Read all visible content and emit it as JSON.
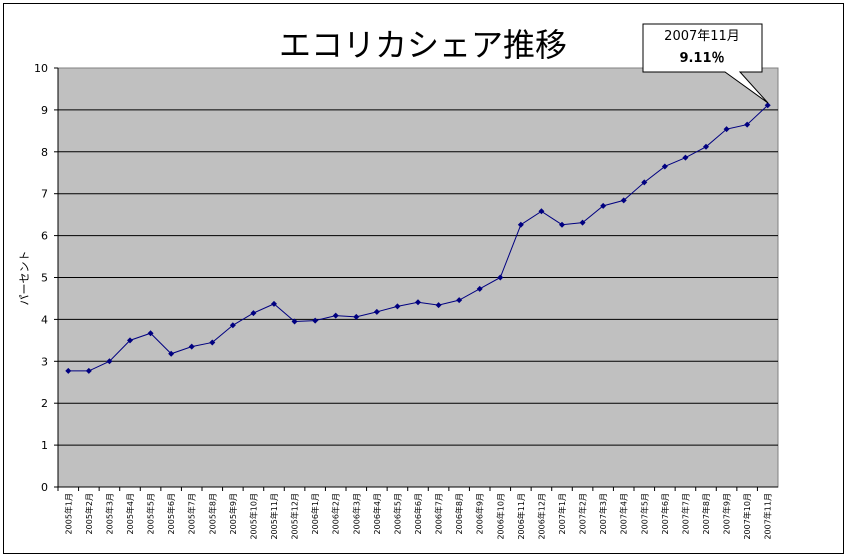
{
  "chart_data": {
    "type": "line",
    "title": "エコリカシェア推移",
    "ylabel": "パーセント",
    "xlabel": "",
    "ylim": [
      0,
      10
    ],
    "yticks": [
      "0",
      "1",
      "2",
      "3",
      "4",
      "5",
      "6",
      "7",
      "8",
      "9",
      "10"
    ],
    "grid": true,
    "categories": [
      "2005年1月",
      "2005年2月",
      "2005年3月",
      "2005年4月",
      "2005年5月",
      "2005年6月",
      "2005年7月",
      "2005年8月",
      "2005年9月",
      "2005年10月",
      "2005年11月",
      "2005年12月",
      "2006年1月",
      "2006年2月",
      "2006年3月",
      "2006年4月",
      "2006年5月",
      "2006年6月",
      "2006年7月",
      "2006年8月",
      "2006年9月",
      "2006年10月",
      "2006年11月",
      "2006年12月",
      "2007年1月",
      "2007年2月",
      "2007年3月",
      "2007年4月",
      "2007年5月",
      "2007年6月",
      "2007年7月",
      "2007年8月",
      "2007年9月",
      "2007年10月",
      "2007年11月"
    ],
    "series": [
      {
        "values": [
          2.77,
          2.77,
          3.0,
          3.5,
          3.67,
          3.18,
          3.35,
          3.45,
          3.86,
          4.15,
          4.37,
          3.95,
          3.97,
          4.09,
          4.06,
          4.18,
          4.31,
          4.41,
          4.34,
          4.46,
          4.73,
          5.0,
          6.26,
          6.58,
          6.26,
          6.31,
          6.71,
          6.84,
          7.27,
          7.65,
          7.86,
          8.12,
          8.54,
          8.65,
          9.11
        ]
      }
    ],
    "callout": {
      "date": "2007年11月",
      "value": "9.11％"
    },
    "colors": {
      "plot_bg": "#c0c0c0",
      "line": "#000080",
      "grid": "#000000"
    }
  }
}
